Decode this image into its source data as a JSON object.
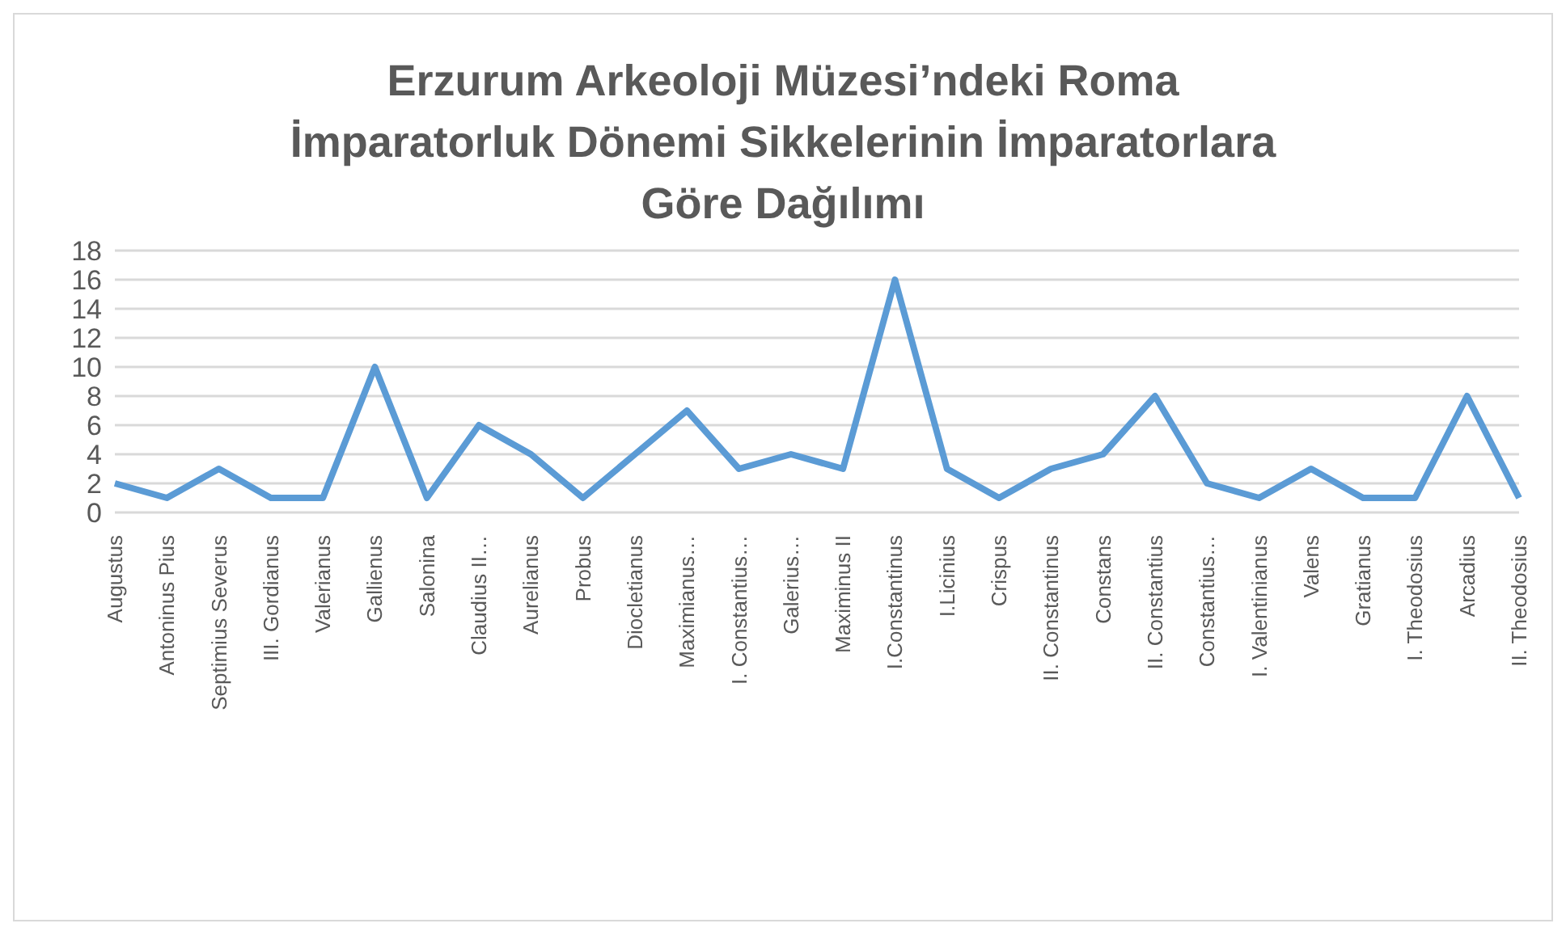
{
  "chart_data": {
    "type": "line",
    "title": "Erzurum Arkeoloji Müzesi’ndeki Roma İmparatorluk Dönemi Sikkelerinin İmparatorlara Göre Dağılımı",
    "categories": [
      "Augustus",
      "Antoninus Pius",
      "Septimius Severus",
      "III. Gordianus",
      "Valerianus",
      "Gallienus",
      "Salonina",
      "Claudius II…",
      "Aurelianus",
      "Probus",
      "Diocletianus",
      "Maximianus…",
      "I. Constantius…",
      "Galerius…",
      "Maximinus II",
      "I.Constantinus",
      "I.Licinius",
      "Crispus",
      "II. Constantinus",
      "Constans",
      "II. Constantius",
      "Constantius…",
      "I. Valentinianus",
      "Valens",
      "Gratianus",
      "I. Theodosius",
      "Arcadius",
      "II. Theodosius"
    ],
    "series": [
      {
        "color": "#5b9bd5",
        "values": [
          2,
          1,
          3,
          1,
          1,
          10,
          1,
          6,
          4,
          1,
          4,
          7,
          3,
          4,
          3,
          16,
          3,
          1,
          3,
          4,
          8,
          2,
          1,
          3,
          1,
          1,
          8,
          1
        ]
      }
    ],
    "ylim": [
      0,
      18
    ],
    "yticks": [
      0,
      2,
      4,
      6,
      8,
      10,
      12,
      14,
      16,
      18
    ],
    "grid": "y",
    "marker": "none",
    "line_style": "solid"
  }
}
